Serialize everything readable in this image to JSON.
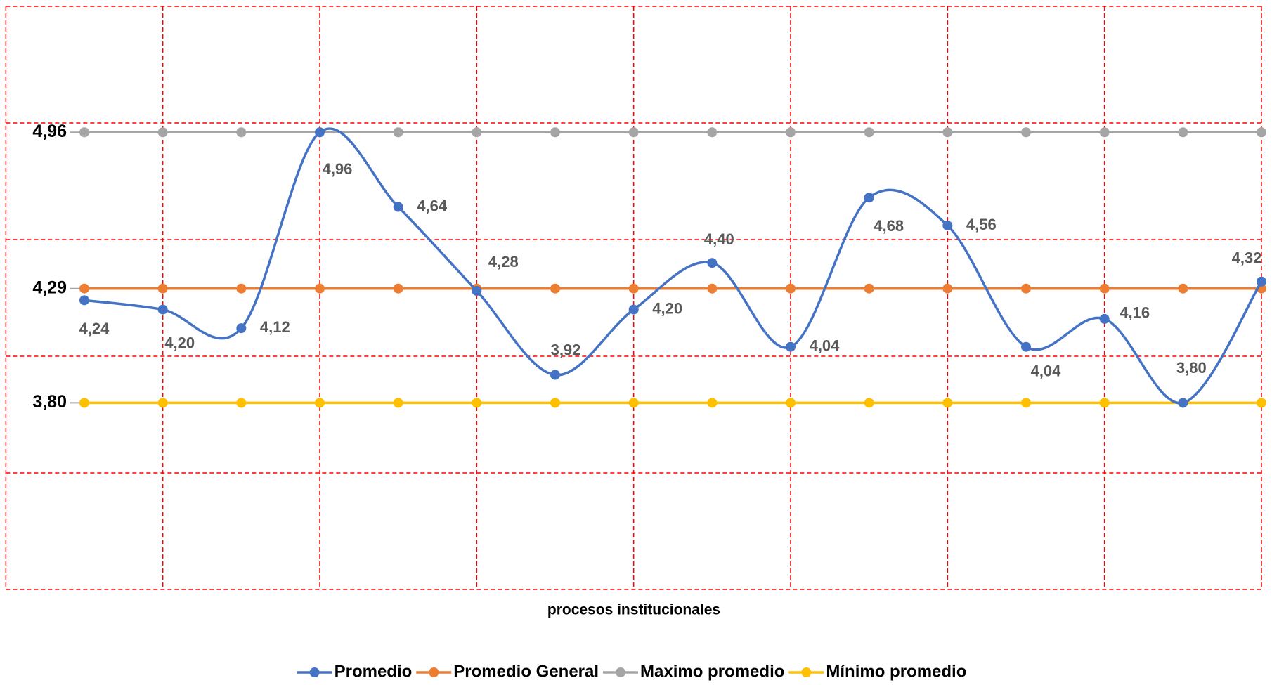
{
  "chart_data": {
    "type": "line",
    "smooth": true,
    "x_label": "procesos institucionales",
    "categories": [
      null,
      null,
      null,
      null,
      null,
      null,
      null,
      null,
      null,
      null,
      null,
      null,
      null,
      null,
      null,
      null
    ],
    "series": [
      {
        "name": "Promedio",
        "color": "#4472c4",
        "values": [
          4.24,
          4.2,
          4.12,
          4.96,
          4.64,
          4.28,
          3.92,
          4.2,
          4.4,
          4.04,
          4.68,
          4.56,
          4.04,
          4.16,
          3.8,
          4.32
        ],
        "value_labels": [
          "4,24",
          "4,20",
          "4,12",
          "4,96",
          "4,64",
          "4,28",
          "3,92",
          "4,20",
          "4,40",
          "4,04",
          "4,68",
          "4,56",
          "4,04",
          "4,16",
          "3,80",
          "4,32"
        ]
      },
      {
        "name": "Promedio General",
        "color": "#ed7d31",
        "values": [
          4.29,
          4.29,
          4.29,
          4.29,
          4.29,
          4.29,
          4.29,
          4.29,
          4.29,
          4.29,
          4.29,
          4.29,
          4.29,
          4.29,
          4.29,
          4.29
        ]
      },
      {
        "name": "Maximo promedio",
        "color": "#a5a5a5",
        "values": [
          4.96,
          4.96,
          4.96,
          4.96,
          4.96,
          4.96,
          4.96,
          4.96,
          4.96,
          4.96,
          4.96,
          4.96,
          4.96,
          4.96,
          4.96,
          4.96
        ]
      },
      {
        "name": "Mínimo promedio",
        "color": "#ffc000",
        "values": [
          3.8,
          3.8,
          3.8,
          3.8,
          3.8,
          3.8,
          3.8,
          3.8,
          3.8,
          3.8,
          3.8,
          3.8,
          3.8,
          3.8,
          3.8,
          3.8
        ]
      }
    ],
    "ylim": [
      3.0,
      5.5
    ],
    "yticks": [
      {
        "value": 3.8,
        "label": "3,80"
      },
      {
        "value": 4.29,
        "label": "4,29"
      },
      {
        "value": 4.96,
        "label": "4,96"
      }
    ],
    "ygrid": [
      3.0,
      3.5,
      4.0,
      4.5,
      5.0,
      5.5
    ],
    "grid_color": "#ff0000",
    "legend": "bottom"
  }
}
